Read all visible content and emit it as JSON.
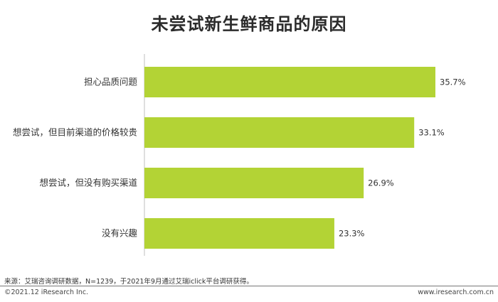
{
  "chart_data": {
    "type": "bar",
    "orientation": "horizontal",
    "title": "未尝试新生鲜商品的原因",
    "categories": [
      "担心品质问题",
      "想尝试，但目前渠道的价格较贵",
      "想尝试，但没有购买渠道",
      "没有兴趣"
    ],
    "values": [
      35.7,
      33.1,
      26.9,
      23.3
    ],
    "value_labels": [
      "35.7%",
      "33.1%",
      "26.9%",
      "23.3%"
    ],
    "xlim": [
      0,
      40
    ],
    "grid": false,
    "bar_color": "#b3d335"
  },
  "footer": {
    "source": "来源：艾瑞咨询调研数据，N=1239，于2021年9月通过艾瑞iclick平台调研获得。",
    "copyright": "©2021.12 iResearch Inc.",
    "website": "www.iresearch.com.cn"
  }
}
